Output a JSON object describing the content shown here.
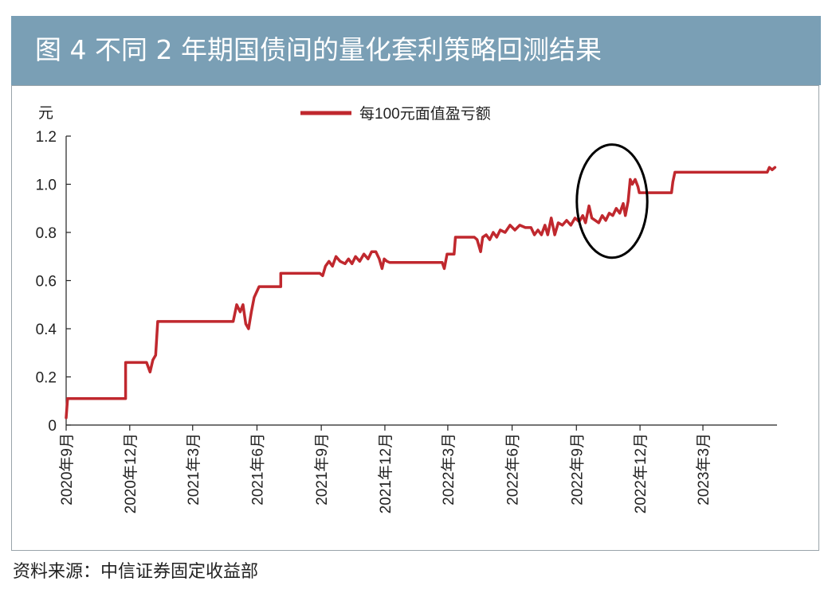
{
  "header": {
    "title": "图 4    不同 2 年期国债间的量化套利策略回测结果"
  },
  "source": "资料来源：中信证券固定收益部",
  "colors": {
    "header_bg": "#7a9fb5",
    "line": "#c0282e",
    "circle": "#000000"
  },
  "chart_data": {
    "type": "line",
    "title": "",
    "ylabel": "元",
    "xlabel": "",
    "ylim": [
      0,
      1.2
    ],
    "yticks": [
      "0",
      "0.2",
      "0.4",
      "0.6",
      "0.8",
      "1.0",
      "1.2"
    ],
    "xlim": [
      "2020-09-01",
      "2023-06-15"
    ],
    "xticks": [
      "2020年9月",
      "2020年12月",
      "2021年3月",
      "2021年6月",
      "2021年9月",
      "2021年12月",
      "2022年3月",
      "2022年6月",
      "2022年9月",
      "2022年12月",
      "2023年3月"
    ],
    "legend": {
      "position": "top-center"
    },
    "grid": false,
    "series": [
      {
        "name": "每100元面值盈亏额",
        "points": [
          [
            "2020-09-01",
            0.03
          ],
          [
            "2020-09-03",
            0.11
          ],
          [
            "2020-11-25",
            0.11
          ],
          [
            "2020-11-25",
            0.26
          ],
          [
            "2020-12-25",
            0.26
          ],
          [
            "2020-12-30",
            0.22
          ],
          [
            "2021-01-03",
            0.27
          ],
          [
            "2021-01-07",
            0.29
          ],
          [
            "2021-01-10",
            0.43
          ],
          [
            "2021-04-28",
            0.43
          ],
          [
            "2021-05-03",
            0.5
          ],
          [
            "2021-05-08",
            0.47
          ],
          [
            "2021-05-12",
            0.5
          ],
          [
            "2021-05-16",
            0.42
          ],
          [
            "2021-05-20",
            0.4
          ],
          [
            "2021-05-24",
            0.47
          ],
          [
            "2021-05-28",
            0.53
          ],
          [
            "2021-06-04",
            0.575
          ],
          [
            "2021-07-05",
            0.575
          ],
          [
            "2021-07-05",
            0.63
          ],
          [
            "2021-08-30",
            0.63
          ],
          [
            "2021-09-03",
            0.62
          ],
          [
            "2021-09-07",
            0.66
          ],
          [
            "2021-09-12",
            0.68
          ],
          [
            "2021-09-17",
            0.66
          ],
          [
            "2021-09-22",
            0.7
          ],
          [
            "2021-09-28",
            0.68
          ],
          [
            "2021-10-05",
            0.67
          ],
          [
            "2021-10-10",
            0.69
          ],
          [
            "2021-10-15",
            0.67
          ],
          [
            "2021-10-20",
            0.7
          ],
          [
            "2021-10-26",
            0.68
          ],
          [
            "2021-11-01",
            0.71
          ],
          [
            "2021-11-07",
            0.69
          ],
          [
            "2021-11-12",
            0.72
          ],
          [
            "2021-11-18",
            0.72
          ],
          [
            "2021-11-23",
            0.69
          ],
          [
            "2021-11-27",
            0.65
          ],
          [
            "2021-11-30",
            0.69
          ],
          [
            "2021-12-04",
            0.68
          ],
          [
            "2021-12-08",
            0.675
          ],
          [
            "2022-02-21",
            0.675
          ],
          [
            "2022-02-24",
            0.65
          ],
          [
            "2022-02-28",
            0.71
          ],
          [
            "2022-03-10",
            0.71
          ],
          [
            "2022-03-12",
            0.78
          ],
          [
            "2022-04-08",
            0.78
          ],
          [
            "2022-04-12",
            0.77
          ],
          [
            "2022-04-17",
            0.72
          ],
          [
            "2022-04-20",
            0.78
          ],
          [
            "2022-04-25",
            0.79
          ],
          [
            "2022-04-30",
            0.77
          ],
          [
            "2022-05-05",
            0.8
          ],
          [
            "2022-05-10",
            0.78
          ],
          [
            "2022-05-15",
            0.81
          ],
          [
            "2022-05-22",
            0.8
          ],
          [
            "2022-05-29",
            0.83
          ],
          [
            "2022-06-05",
            0.81
          ],
          [
            "2022-06-12",
            0.83
          ],
          [
            "2022-06-20",
            0.82
          ],
          [
            "2022-06-28",
            0.82
          ],
          [
            "2022-07-03",
            0.79
          ],
          [
            "2022-07-08",
            0.81
          ],
          [
            "2022-07-13",
            0.79
          ],
          [
            "2022-07-18",
            0.83
          ],
          [
            "2022-07-22",
            0.79
          ],
          [
            "2022-07-27",
            0.86
          ],
          [
            "2022-08-01",
            0.79
          ],
          [
            "2022-08-06",
            0.84
          ],
          [
            "2022-08-12",
            0.83
          ],
          [
            "2022-08-18",
            0.85
          ],
          [
            "2022-08-24",
            0.83
          ],
          [
            "2022-08-30",
            0.86
          ],
          [
            "2022-09-05",
            0.845
          ],
          [
            "2022-09-10",
            0.87
          ],
          [
            "2022-09-14",
            0.84
          ],
          [
            "2022-09-19",
            0.91
          ],
          [
            "2022-09-23",
            0.86
          ],
          [
            "2022-09-28",
            0.85
          ],
          [
            "2022-10-03",
            0.84
          ],
          [
            "2022-10-08",
            0.87
          ],
          [
            "2022-10-13",
            0.85
          ],
          [
            "2022-10-18",
            0.88
          ],
          [
            "2022-10-23",
            0.87
          ],
          [
            "2022-10-28",
            0.9
          ],
          [
            "2022-11-02",
            0.88
          ],
          [
            "2022-11-07",
            0.92
          ],
          [
            "2022-11-10",
            0.87
          ],
          [
            "2022-11-14",
            0.93
          ],
          [
            "2022-11-17",
            1.02
          ],
          [
            "2022-11-20",
            1.0
          ],
          [
            "2022-11-24",
            1.02
          ],
          [
            "2022-11-28",
            0.99
          ],
          [
            "2022-11-30",
            0.965
          ],
          [
            "2023-01-15",
            0.965
          ],
          [
            "2023-01-17",
            1.01
          ],
          [
            "2023-01-20",
            1.05
          ],
          [
            "2023-06-01",
            1.05
          ],
          [
            "2023-06-04",
            1.07
          ],
          [
            "2023-06-08",
            1.06
          ],
          [
            "2023-06-12",
            1.07
          ]
        ]
      }
    ],
    "annotations": [
      {
        "type": "ellipse",
        "x_center": "2022-10-22",
        "y_center": 0.93,
        "x_half_days": 18,
        "y_half": 0.235
      }
    ]
  }
}
